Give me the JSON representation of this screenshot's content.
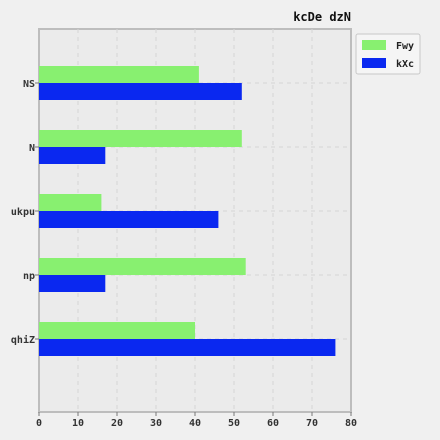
{
  "chart_data": {
    "type": "bar",
    "orientation": "horizontal",
    "title": "kcDe dzN",
    "categories": [
      "NS",
      "N",
      "ukpu",
      "np",
      "qhiZ"
    ],
    "series": [
      {
        "name": "Fwy",
        "color": "#88f070",
        "values": [
          41,
          52,
          16,
          53,
          40
        ]
      },
      {
        "name": "kXc",
        "color": "#0a28f0",
        "values": [
          52,
          17,
          46,
          17,
          76
        ]
      }
    ],
    "xlim": [
      0,
      80
    ],
    "xticks": [
      "0",
      "10",
      "20",
      "30",
      "40",
      "50",
      "60",
      "70",
      "80"
    ],
    "grid": true,
    "legend_position": "top-right",
    "xlabel": "",
    "ylabel": ""
  }
}
